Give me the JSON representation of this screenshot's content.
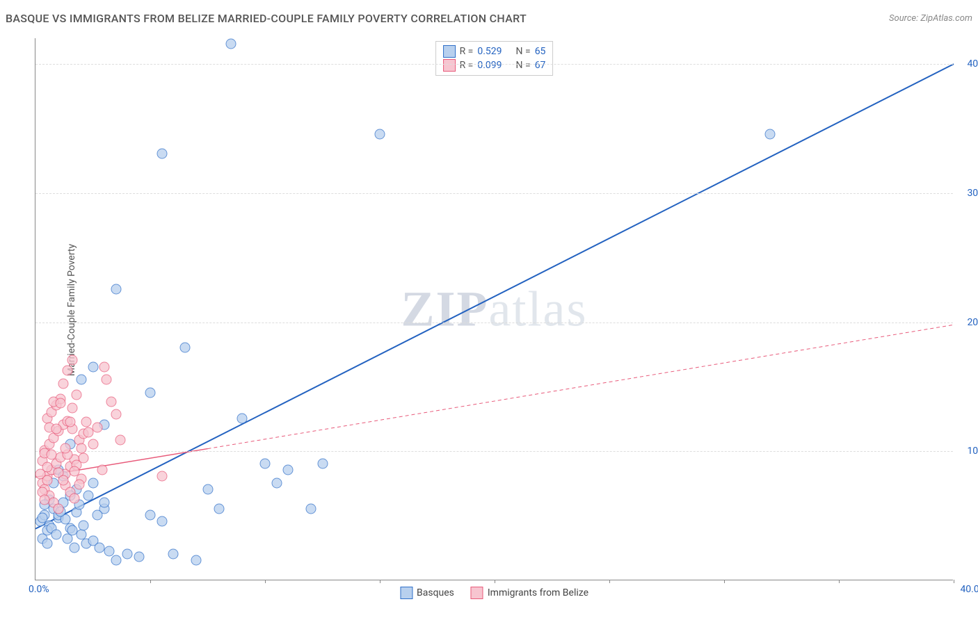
{
  "title": "BASQUE VS IMMIGRANTS FROM BELIZE MARRIED-COUPLE FAMILY POVERTY CORRELATION CHART",
  "source": "Source: ZipAtlas.com",
  "ylabel": "Married-Couple Family Poverty",
  "xlim": [
    0,
    40
  ],
  "ylim": [
    0,
    42
  ],
  "yticks": [
    10,
    20,
    30,
    40
  ],
  "xtick_marks": [
    5,
    10,
    15,
    20,
    25,
    30,
    35,
    40
  ],
  "xtick_start_label": "0.0%",
  "xtick_end_label": "40.0%",
  "series": [
    {
      "name": "Basques",
      "marker_fill": "#b8d0ee",
      "marker_stroke": "#2f6fc9",
      "marker_opacity": 0.75,
      "marker_size": 15,
      "line_color": "#2362c0",
      "line_dash": "solid",
      "R": "0.529",
      "N": "65",
      "regression": {
        "x1": 0,
        "y1": 4,
        "x2": 40,
        "y2": 40
      },
      "points": [
        [
          0.2,
          4.5
        ],
        [
          0.4,
          5.0
        ],
        [
          0.6,
          4.2
        ],
        [
          0.8,
          5.5
        ],
        [
          1.0,
          4.8
        ],
        [
          1.2,
          6.0
        ],
        [
          0.5,
          3.8
        ],
        [
          0.3,
          3.2
        ],
        [
          1.5,
          4.0
        ],
        [
          1.8,
          5.2
        ],
        [
          2.0,
          3.5
        ],
        [
          2.2,
          2.8
        ],
        [
          2.5,
          3.0
        ],
        [
          2.8,
          2.5
        ],
        [
          3.0,
          5.5
        ],
        [
          3.2,
          2.2
        ],
        [
          1.0,
          8.5
        ],
        [
          1.5,
          10.5
        ],
        [
          2.0,
          15.5
        ],
        [
          2.5,
          16.5
        ],
        [
          3.0,
          12.0
        ],
        [
          3.5,
          1.5
        ],
        [
          4.0,
          2.0
        ],
        [
          4.5,
          1.8
        ],
        [
          5.0,
          5.0
        ],
        [
          5.5,
          4.5
        ],
        [
          6.0,
          2.0
        ],
        [
          6.5,
          18.0
        ],
        [
          7.0,
          1.5
        ],
        [
          7.5,
          7.0
        ],
        [
          8.0,
          5.5
        ],
        [
          8.5,
          41.5
        ],
        [
          9.0,
          12.5
        ],
        [
          10.0,
          9.0
        ],
        [
          10.5,
          7.5
        ],
        [
          11.0,
          8.5
        ],
        [
          12.0,
          5.5
        ],
        [
          12.5,
          9.0
        ],
        [
          5.0,
          14.5
        ],
        [
          5.5,
          33.0
        ],
        [
          3.5,
          22.5
        ],
        [
          15.0,
          34.5
        ],
        [
          32.0,
          34.5
        ],
        [
          2.5,
          7.5
        ],
        [
          1.8,
          7.0
        ],
        [
          1.2,
          8.0
        ],
        [
          0.8,
          7.5
        ],
        [
          1.5,
          6.5
        ],
        [
          3.0,
          6.0
        ],
        [
          0.6,
          6.2
        ],
        [
          0.4,
          5.8
        ],
        [
          1.0,
          5.0
        ],
        [
          1.3,
          4.7
        ],
        [
          0.7,
          4.0
        ],
        [
          1.6,
          3.8
        ],
        [
          2.1,
          4.2
        ],
        [
          0.9,
          3.5
        ],
        [
          1.4,
          3.2
        ],
        [
          0.5,
          2.8
        ],
        [
          1.7,
          2.5
        ],
        [
          2.3,
          6.5
        ],
        [
          0.3,
          4.8
        ],
        [
          1.1,
          5.3
        ],
        [
          1.9,
          5.8
        ],
        [
          2.7,
          5.0
        ]
      ]
    },
    {
      "name": "Immigrants from Belize",
      "marker_fill": "#f7c5d0",
      "marker_stroke": "#e85a7a",
      "marker_opacity": 0.75,
      "marker_size": 15,
      "line_color": "#e85a7a",
      "line_dash": "dashed_after_data",
      "R": "0.099",
      "N": "67",
      "regression_solid": {
        "x1": 0,
        "y1": 8,
        "x2": 7.5,
        "y2": 10.2
      },
      "regression_dash": {
        "x1": 7.5,
        "y1": 10.2,
        "x2": 40,
        "y2": 19.8
      },
      "points": [
        [
          0.3,
          7.5
        ],
        [
          0.5,
          8.0
        ],
        [
          0.7,
          8.5
        ],
        [
          0.9,
          9.0
        ],
        [
          1.1,
          9.5
        ],
        [
          0.4,
          10.0
        ],
        [
          0.6,
          10.5
        ],
        [
          0.8,
          11.0
        ],
        [
          1.0,
          11.5
        ],
        [
          1.2,
          12.0
        ],
        [
          0.5,
          12.5
        ],
        [
          0.7,
          13.0
        ],
        [
          0.9,
          13.5
        ],
        [
          1.1,
          14.0
        ],
        [
          0.4,
          7.0
        ],
        [
          0.6,
          6.5
        ],
        [
          0.8,
          6.0
        ],
        [
          1.0,
          5.5
        ],
        [
          0.3,
          9.2
        ],
        [
          0.5,
          8.7
        ],
        [
          1.3,
          8.2
        ],
        [
          1.5,
          8.8
        ],
        [
          1.7,
          9.3
        ],
        [
          1.9,
          10.8
        ],
        [
          2.1,
          11.3
        ],
        [
          1.4,
          12.3
        ],
        [
          1.6,
          13.3
        ],
        [
          1.8,
          14.3
        ],
        [
          2.0,
          7.8
        ],
        [
          1.3,
          7.3
        ],
        [
          1.5,
          6.8
        ],
        [
          1.7,
          6.3
        ],
        [
          2.5,
          10.5
        ],
        [
          2.7,
          11.8
        ],
        [
          2.9,
          8.5
        ],
        [
          3.1,
          15.5
        ],
        [
          3.3,
          13.8
        ],
        [
          3.5,
          12.8
        ],
        [
          3.7,
          10.8
        ],
        [
          3.0,
          16.5
        ],
        [
          1.2,
          15.2
        ],
        [
          1.4,
          16.2
        ],
        [
          1.6,
          17.0
        ],
        [
          5.5,
          8.0
        ],
        [
          0.2,
          8.2
        ],
        [
          0.4,
          9.8
        ],
        [
          0.6,
          11.8
        ],
        [
          0.8,
          13.8
        ],
        [
          1.0,
          8.3
        ],
        [
          1.2,
          7.7
        ],
        [
          1.4,
          9.7
        ],
        [
          1.6,
          11.7
        ],
        [
          1.8,
          8.9
        ],
        [
          2.0,
          10.2
        ],
        [
          2.2,
          12.2
        ],
        [
          0.3,
          6.8
        ],
        [
          0.5,
          7.7
        ],
        [
          0.7,
          9.7
        ],
        [
          0.9,
          11.7
        ],
        [
          1.1,
          13.7
        ],
        [
          1.3,
          10.2
        ],
        [
          1.5,
          12.2
        ],
        [
          1.7,
          8.4
        ],
        [
          1.9,
          7.4
        ],
        [
          2.1,
          9.4
        ],
        [
          2.3,
          11.4
        ],
        [
          0.4,
          6.2
        ]
      ]
    }
  ],
  "watermark": {
    "prefix": "ZIP",
    "suffix": "atlas"
  },
  "legend_bottom": [
    {
      "label": "Basques",
      "fill": "#b8d0ee",
      "stroke": "#2f6fc9"
    },
    {
      "label": "Immigrants from Belize",
      "fill": "#f7c5d0",
      "stroke": "#e85a7a"
    }
  ],
  "style": {
    "background": "#ffffff",
    "grid_color": "#dddddd",
    "axis_color": "#888888",
    "text_color": "#555555",
    "tick_label_color": "#2362c0",
    "title_fontsize": 16,
    "label_fontsize": 14,
    "tick_fontsize": 14,
    "watermark_fontsize": 72
  }
}
